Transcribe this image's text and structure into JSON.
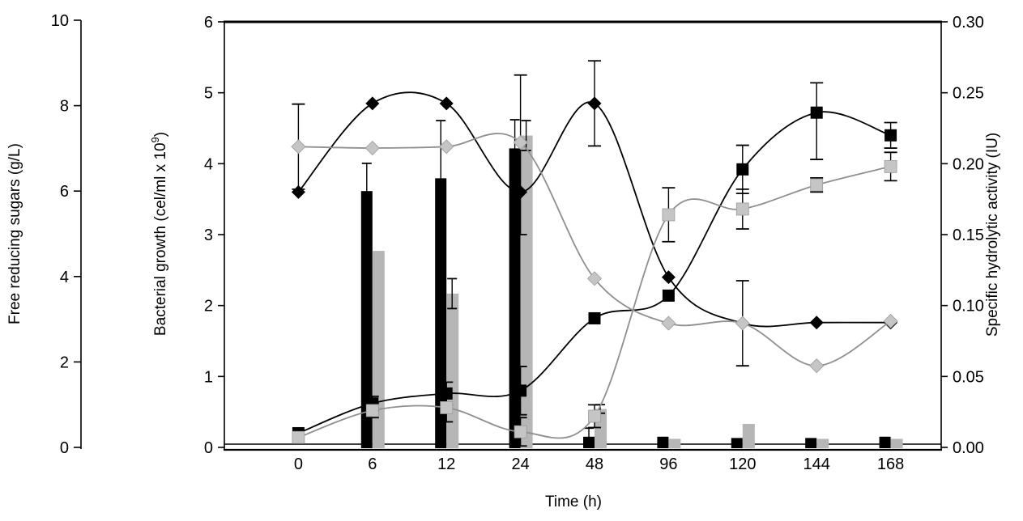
{
  "chart_data": {
    "type": "composite-bar-line",
    "title": "",
    "x_axis": {
      "label": "Time (h)",
      "categories": [
        "0",
        "6",
        "12",
        "24",
        "48",
        "96",
        "120",
        "144",
        "168"
      ]
    },
    "axes": {
      "sugars": {
        "title": "Free reducing sugars (g/L)",
        "range": [
          0,
          10
        ],
        "ticks": [
          "0",
          "2",
          "4",
          "6",
          "8",
          "10"
        ]
      },
      "growth": {
        "title_pre": "Bacterial growth (cel/ml x 10",
        "title_sup": "9",
        "title_post": ")",
        "range": [
          0,
          6
        ],
        "ticks": [
          "0",
          "1",
          "2",
          "3",
          "4",
          "5",
          "6"
        ]
      },
      "activity": {
        "title": "Specific hydrolytic activity (IU)",
        "range": [
          0,
          0.3
        ],
        "ticks": [
          "0.00",
          "0.05",
          "0.10",
          "0.15",
          "0.20",
          "0.25",
          "0.30"
        ]
      }
    },
    "colors": {
      "black": "#000000",
      "gray_bar": "#b6b6b6",
      "gray_line": "#8f8f8f",
      "gray_fill": "#c5c5c5",
      "gray_edge": "#9b9b9b",
      "error_bar": "#000000",
      "frame": "#000000"
    },
    "series": [
      {
        "id": "bars-black",
        "label": "black bars (free reducing sugars)",
        "type": "bar",
        "axis": "sugars",
        "color": "#000000",
        "values": [
          0,
          6.0,
          6.3,
          7.0,
          0.25,
          0.25,
          0.22,
          0.22,
          0.25
        ],
        "err_up": [
          0,
          0.65,
          1.35,
          0.67,
          0.2,
          0,
          0,
          0,
          0
        ],
        "err_dn": [
          0,
          0.65,
          1.35,
          0.67,
          0.2,
          0,
          0,
          0,
          0
        ]
      },
      {
        "id": "bars-gray",
        "label": "gray bars (free reducing sugars)",
        "type": "bar",
        "axis": "sugars",
        "color": "#b6b6b6",
        "values": [
          0,
          4.6,
          3.6,
          7.3,
          0.9,
          0.2,
          0.55,
          0.2,
          0.2
        ],
        "err_up": [
          0,
          0,
          0.35,
          0.35,
          0.1,
          0,
          0,
          0,
          0
        ],
        "err_dn": [
          0,
          0,
          0.35,
          0.35,
          0.1,
          0,
          0,
          0,
          0
        ]
      },
      {
        "id": "line-black-squares",
        "label": "black squares (specific hydrolytic activity)",
        "type": "line",
        "axis": "activity",
        "marker": "square",
        "line_color": "#000000",
        "fill": "#000000",
        "values": [
          0.01,
          0.031,
          0.038,
          0.04,
          0.091,
          0.107,
          0.196,
          0.236,
          0.22
        ],
        "err_up": [
          0,
          0.005,
          0.008,
          0.017,
          0,
          0,
          0.017,
          0.021,
          0.009
        ],
        "err_dn": [
          0,
          0.005,
          0.008,
          0.017,
          0,
          0,
          0.017,
          0.033,
          0.009
        ]
      },
      {
        "id": "line-black-diamonds",
        "label": "black diamonds (bacterial growth)",
        "type": "line",
        "axis": "growth",
        "marker": "diamond",
        "line_color": "#000000",
        "fill": "#000000",
        "values": [
          3.6,
          4.85,
          4.85,
          3.6,
          4.85,
          2.4,
          1.75,
          1.76,
          1.76
        ],
        "err_up": [
          0,
          0,
          0,
          1.65,
          0.6,
          0,
          0,
          0,
          0
        ],
        "err_dn": [
          0,
          0,
          0,
          0.6,
          0.6,
          0,
          0,
          0,
          0
        ]
      },
      {
        "id": "line-gray-squares",
        "label": "gray squares (specific hydrolytic activity)",
        "type": "line",
        "axis": "activity",
        "marker": "square",
        "line_color": "#8f8f8f",
        "fill": "#c5c5c5",
        "values": [
          0.007,
          0.026,
          0.028,
          0.011,
          0.022,
          0.164,
          0.168,
          0.185,
          0.198
        ],
        "err_up": [
          0,
          0.005,
          0.01,
          0.01,
          0.008,
          0.019,
          0.014,
          0.005,
          0.01
        ],
        "err_dn": [
          0,
          0.005,
          0.01,
          0.01,
          0.008,
          0.019,
          0.014,
          0.005,
          0.01
        ]
      },
      {
        "id": "line-gray-diamonds",
        "label": "gray diamonds (bacterial growth)",
        "type": "line",
        "axis": "growth",
        "marker": "diamond",
        "line_color": "#8f8f8f",
        "fill": "#c5c5c5",
        "values": [
          4.24,
          4.22,
          4.24,
          4.3,
          2.38,
          1.75,
          1.75,
          1.15,
          1.78
        ],
        "err_up": [
          0.6,
          0,
          0,
          0,
          0,
          0,
          0.6,
          0,
          0
        ],
        "err_dn": [
          0.6,
          0,
          0,
          0,
          0,
          0,
          0.6,
          0,
          0
        ]
      }
    ],
    "layout_hints": {
      "grid": false,
      "legend": "none",
      "background": "#ffffff"
    }
  }
}
